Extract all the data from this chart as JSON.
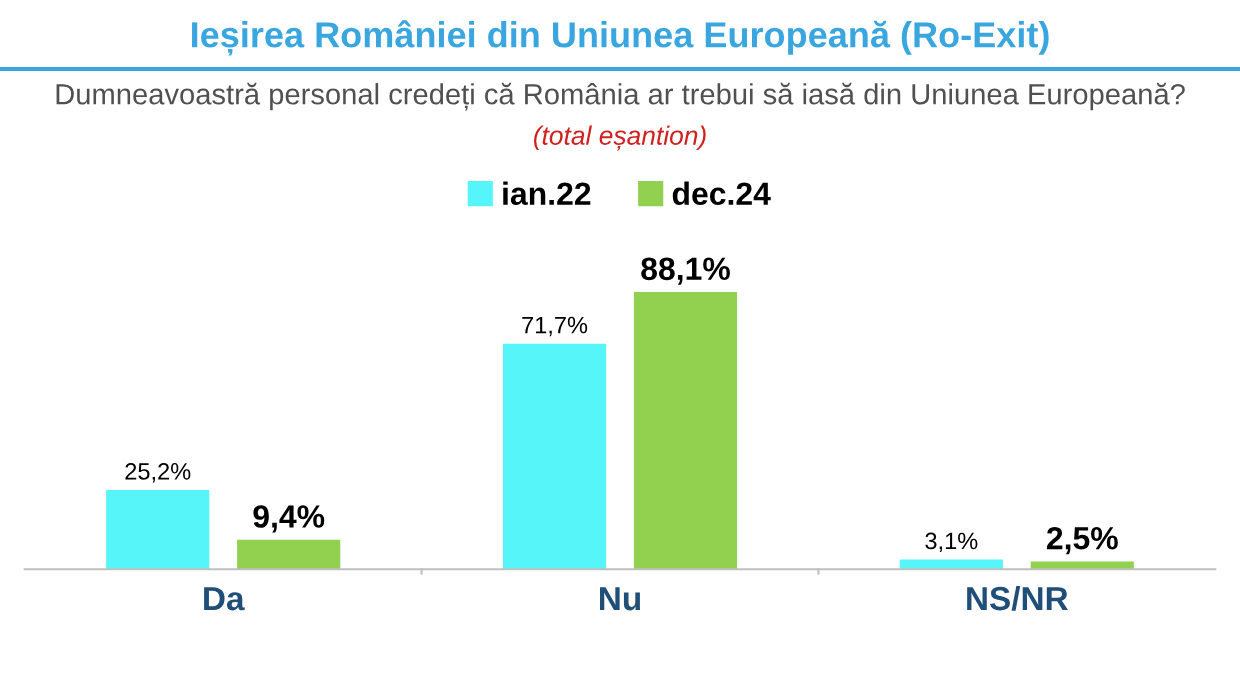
{
  "chart_data": {
    "type": "bar",
    "title": "Ieșirea României din Uniunea Europeană (Ro-Exit)",
    "subtitle": "Dumneavoastră personal credeți că România ar trebui să iasă din Uniunea Europeană?",
    "annotations": [
      "(total eșantion)"
    ],
    "categories": [
      "Da",
      "Nu",
      "NS/NR"
    ],
    "series": [
      {
        "name": "ian.22",
        "color": "#55f5fa",
        "values": [
          25.2,
          71.7,
          3.1
        ],
        "value_labels": [
          "25,2%",
          "71,7%",
          "3,1%"
        ]
      },
      {
        "name": "dec.24",
        "color": "#92d050",
        "values": [
          9.4,
          88.1,
          2.5
        ],
        "value_labels": [
          "9,4%",
          "88,1%",
          "2,5%"
        ]
      }
    ],
    "legend": "top",
    "grid": false
  }
}
